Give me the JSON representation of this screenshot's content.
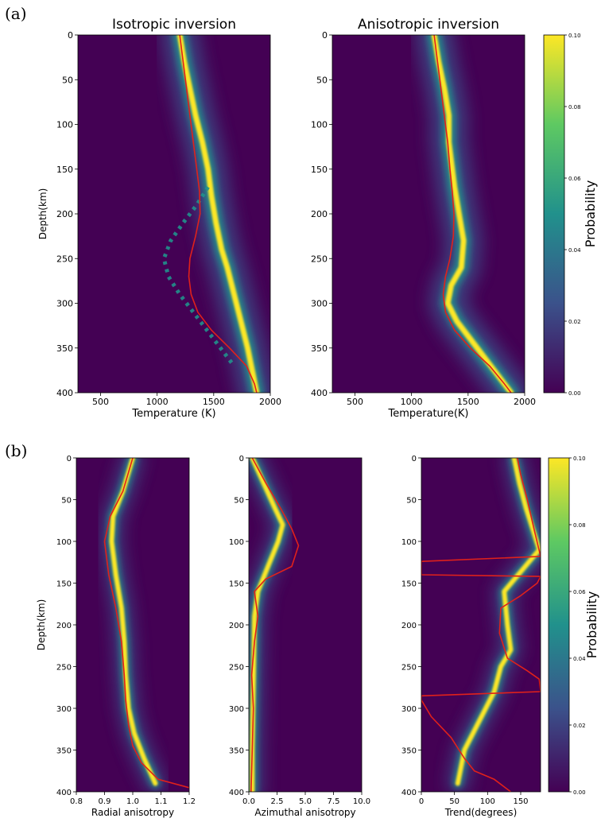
{
  "figure": {
    "panel_labels": [
      "(a)",
      "(b)"
    ]
  },
  "chart_data": [
    {
      "type": "heatmap",
      "panel": "a",
      "title": "Isotropic inversion",
      "xlabel": "Temperature (K)",
      "ylabel": "Depth(km)",
      "xlim": [
        300,
        2000
      ],
      "ylim": [
        400,
        0
      ],
      "xticks": [
        "500",
        "1000",
        "1500",
        "2000"
      ],
      "yticks": [
        "0",
        "50",
        "100",
        "150",
        "200",
        "250",
        "300",
        "350",
        "400"
      ],
      "red_line": {
        "x": [
          1200,
          1230,
          1260,
          1290,
          1320,
          1350,
          1375,
          1380,
          1340,
          1290,
          1280,
          1300,
          1360,
          1480,
          1640,
          1790,
          1860,
          1880
        ],
        "y": [
          0,
          30,
          60,
          90,
          120,
          150,
          175,
          200,
          225,
          250,
          270,
          290,
          310,
          330,
          350,
          370,
          390,
          400
        ]
      },
      "high_probability_ridge": {
        "x": [
          1200,
          1240,
          1290,
          1340,
          1400,
          1450,
          1480,
          1520,
          1570,
          1620,
          1700,
          1800,
          1880
        ],
        "y": [
          0,
          30,
          60,
          90,
          120,
          150,
          180,
          210,
          240,
          260,
          300,
          350,
          400
        ]
      },
      "dotted_branch": {
        "x": [
          1450,
          1350,
          1230,
          1120,
          1060,
          1100,
          1200,
          1320,
          1440,
          1560,
          1680
        ],
        "y": [
          170,
          190,
          210,
          230,
          250,
          270,
          290,
          310,
          330,
          350,
          370
        ]
      }
    },
    {
      "type": "heatmap",
      "panel": "a",
      "title": "Anisotropic inversion",
      "xlabel": "Temperature(K)",
      "ylabel": "",
      "xlim": [
        300,
        2000
      ],
      "ylim": [
        400,
        0
      ],
      "xticks": [
        "500",
        "1000",
        "1500",
        "2000"
      ],
      "yticks": [
        "0",
        "50",
        "100",
        "150",
        "200",
        "250",
        "300",
        "350",
        "400"
      ],
      "red_line": {
        "x": [
          1200,
          1230,
          1260,
          1290,
          1320,
          1340,
          1360,
          1375,
          1370,
          1340,
          1300,
          1280,
          1300,
          1380,
          1520,
          1690,
          1820,
          1880
        ],
        "y": [
          0,
          30,
          60,
          90,
          120,
          150,
          175,
          200,
          225,
          250,
          270,
          290,
          310,
          330,
          350,
          370,
          390,
          400
        ]
      },
      "high_probability_ridge": {
        "x": [
          1200,
          1240,
          1290,
          1330,
          1330,
          1380,
          1460,
          1440,
          1350,
          1320,
          1400,
          1520,
          1700,
          1880
        ],
        "y": [
          0,
          30,
          60,
          90,
          120,
          170,
          230,
          260,
          280,
          300,
          320,
          340,
          370,
          400
        ]
      }
    },
    {
      "type": "heatmap",
      "panel": "b",
      "title": "",
      "xlabel": "Radial anisotropy",
      "ylabel": "Depth(km)",
      "xlim": [
        0.8,
        1.2
      ],
      "ylim": [
        400,
        0
      ],
      "xticks": [
        "0.8",
        "0.9",
        "1.0",
        "1.1",
        "1.2"
      ],
      "yticks": [
        "0",
        "50",
        "100",
        "150",
        "200",
        "250",
        "300",
        "350",
        "400"
      ],
      "red_line": {
        "x": [
          1.0,
          0.965,
          0.92,
          0.9,
          0.915,
          0.94,
          0.96,
          0.97,
          0.975,
          0.985,
          1.0,
          1.03,
          1.09,
          1.2
        ],
        "y": [
          0,
          40,
          70,
          100,
          140,
          180,
          220,
          260,
          290,
          320,
          345,
          365,
          385,
          395
        ]
      },
      "high_probability_ridge": {
        "x": [
          1.0,
          0.965,
          0.93,
          0.925,
          0.94,
          0.96,
          0.97,
          0.975,
          0.985,
          1.005,
          1.04,
          1.08
        ],
        "y": [
          0,
          40,
          70,
          100,
          140,
          180,
          220,
          260,
          300,
          330,
          360,
          390
        ]
      }
    },
    {
      "type": "heatmap",
      "panel": "b",
      "title": "",
      "xlabel": "Azimuthal anisotropy",
      "ylabel": "",
      "xlim": [
        0,
        10
      ],
      "ylim": [
        400,
        0
      ],
      "xticks": [
        "0.0",
        "2.5",
        "5.0",
        "7.5",
        "10.0"
      ],
      "yticks": [
        "0",
        "50",
        "100",
        "150",
        "200",
        "250",
        "300",
        "350",
        "400"
      ],
      "red_line": {
        "x": [
          0.3,
          1.5,
          2.8,
          3.8,
          4.4,
          3.8,
          1.5,
          0.5,
          0.8,
          0.5,
          0.25,
          0.4,
          0.3,
          0.2
        ],
        "y": [
          0,
          30,
          60,
          85,
          105,
          130,
          145,
          160,
          190,
          220,
          260,
          300,
          350,
          400
        ]
      },
      "high_probability_ridge": {
        "x": [
          0.3,
          1.3,
          2.3,
          3.0,
          2.6,
          1.7,
          0.8,
          0.5,
          0.45,
          0.4,
          0.35,
          0.3,
          0.3
        ],
        "y": [
          0,
          30,
          60,
          80,
          100,
          130,
          160,
          190,
          230,
          270,
          310,
          350,
          400
        ]
      }
    },
    {
      "type": "heatmap",
      "panel": "b",
      "title": "",
      "xlabel": "Trend(degrees)",
      "ylabel": "",
      "xlim": [
        0,
        180
      ],
      "ylim": [
        400,
        0
      ],
      "xticks": [
        "0",
        "50",
        "100",
        "150"
      ],
      "yticks": [
        "0",
        "50",
        "100",
        "150",
        "200",
        "250",
        "300",
        "350",
        "400"
      ],
      "red_line": {
        "x": [
          145,
          150,
          160,
          170,
          180,
          0,
          0,
          180,
          175,
          150,
          120,
          118,
          130,
          160,
          178,
          180,
          0,
          0,
          15,
          45,
          65,
          80,
          110,
          135
        ],
        "y": [
          0,
          20,
          50,
          85,
          118,
          124,
          140,
          142,
          150,
          165,
          180,
          210,
          240,
          255,
          265,
          280,
          285,
          290,
          310,
          335,
          360,
          375,
          385,
          400
        ]
      },
      "high_probability_ridge": {
        "x": [
          140,
          148,
          158,
          170,
          178,
          125,
          130,
          135,
          120,
          110,
          65,
          55
        ],
        "y": [
          0,
          30,
          60,
          90,
          110,
          160,
          200,
          230,
          250,
          280,
          350,
          390
        ]
      }
    }
  ],
  "colorbars": [
    {
      "label": "Probability",
      "range": [
        0.0,
        0.1
      ],
      "ticks": [
        "0.10",
        "0.08",
        "0.06",
        "0.04",
        "0.02",
        "0.00"
      ]
    },
    {
      "label": "Probability",
      "range": [
        0.0,
        0.1
      ],
      "ticks": [
        "0.10",
        "0.08",
        "0.06",
        "0.04",
        "0.02",
        "0.00"
      ]
    }
  ],
  "colors": {
    "background": "#440154",
    "mid": "#3b528b",
    "teal": "#21918c",
    "green": "#5ec962",
    "high": "#fde725",
    "model_line": "#e0211b"
  }
}
